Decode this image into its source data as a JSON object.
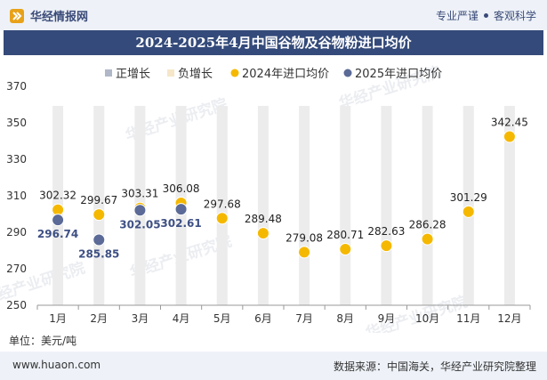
{
  "header": {
    "brand": "华经情报网",
    "tagline_left": "专业严谨",
    "tagline_right": "客观科学",
    "title": "2024-2025年4月中国谷物及谷物粉进口均价"
  },
  "footer": {
    "unit": "单位：美元/吨",
    "site": "www.huaon.com",
    "source": "数据来源：中国海关，华经产业研究院整理"
  },
  "watermark": "华经产业研究院",
  "colors": {
    "title_bg": "#344a7a",
    "positive": "#b0b8c8",
    "negative": "#f6e7c8",
    "series_2024": "#f5b800",
    "series_2025": "#5b6a96",
    "column_bg": "#ececec"
  },
  "chart_data": {
    "type": "scatter",
    "title": "2024-2025年4月中国谷物及谷物粉进口均价",
    "ylabel": "单位：美元/吨",
    "categories": [
      "1月",
      "2月",
      "3月",
      "4月",
      "5月",
      "6月",
      "7月",
      "8月",
      "9月",
      "10月",
      "11月",
      "12月"
    ],
    "ylim": [
      250,
      370
    ],
    "yticks": [
      250,
      270,
      290,
      310,
      330,
      350,
      370
    ],
    "legend": [
      "正增长",
      "负增长",
      "2024年进口均价",
      "2025年进口均价"
    ],
    "series": [
      {
        "name": "2024年进口均价",
        "values": [
          302.32,
          299.67,
          303.31,
          306.08,
          297.68,
          289.48,
          279.08,
          280.71,
          282.63,
          286.28,
          301.29,
          342.45
        ]
      },
      {
        "name": "2025年进口均价",
        "values": [
          296.74,
          285.85,
          302.05,
          302.61
        ]
      }
    ]
  }
}
